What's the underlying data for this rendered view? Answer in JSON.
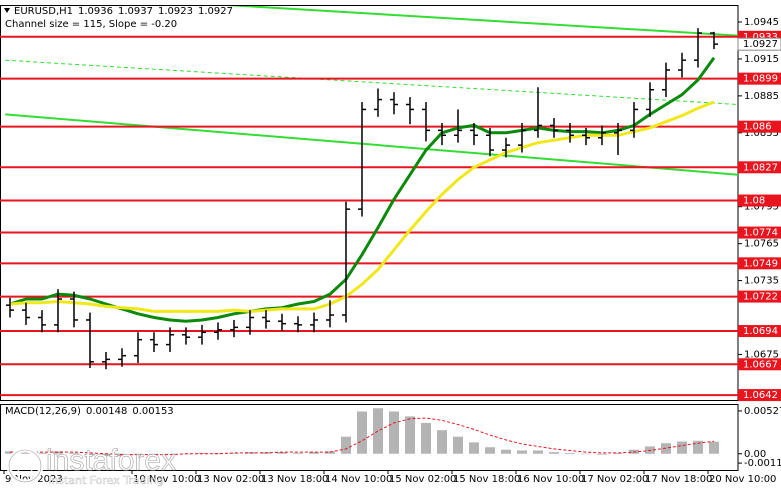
{
  "chart_data": [
    {
      "type": "ohlc",
      "title": "EURUSD,H1",
      "annotation": "Channel size = 115, Slope = -0.20",
      "categories": [
        "9 Nov 2023",
        null,
        null,
        null,
        null,
        null,
        null,
        null,
        "10 Nov 10:00",
        null,
        null,
        null,
        "13 Nov 02:00",
        null,
        null,
        null,
        "13 Nov 18:00",
        null,
        null,
        null,
        "14 Nov 10:00",
        null,
        null,
        null,
        "15 Nov 02:00",
        null,
        null,
        null,
        "15 Nov 18:00",
        null,
        null,
        null,
        "16 Nov 10:00",
        null,
        null,
        null,
        "17 Nov 02:00",
        null,
        null,
        null,
        "17 Nov 18:00",
        null,
        null,
        null,
        "20 Nov 10:00"
      ],
      "open": [
        1.0715,
        1.0711,
        1.0705,
        1.0699,
        1.072,
        1.0703,
        1.0669,
        1.0671,
        1.0674,
        1.0687,
        1.0683,
        1.0691,
        1.0689,
        1.0693,
        1.0695,
        1.0697,
        1.0705,
        1.0702,
        1.07,
        1.0699,
        1.0703,
        1.0707,
        1.0793,
        1.0874,
        1.0882,
        1.0878,
        1.0874,
        1.0857,
        1.0853,
        1.0857,
        1.0853,
        1.0841,
        1.0845,
        1.0857,
        1.0861,
        1.0857,
        1.0853,
        1.0851,
        1.0855,
        1.0857,
        1.0874,
        1.089,
        1.0906,
        1.0914,
        1.0936
      ],
      "high": [
        1.0721,
        1.0717,
        1.0711,
        1.0728,
        1.0726,
        1.0709,
        1.0677,
        1.068,
        1.0693,
        1.0693,
        1.0697,
        1.0697,
        1.0699,
        1.0701,
        1.0703,
        1.0711,
        1.0711,
        1.0708,
        1.0706,
        1.0709,
        1.0719,
        1.0799,
        1.088,
        1.0891,
        1.0888,
        1.0884,
        1.088,
        1.0863,
        1.0874,
        1.0863,
        1.0859,
        1.0851,
        1.0863,
        1.0892,
        1.0867,
        1.0863,
        1.0859,
        1.0861,
        1.0863,
        1.088,
        1.0896,
        1.0912,
        1.092,
        1.094,
        1.0937
      ],
      "low": [
        1.0705,
        1.0699,
        1.0693,
        1.0693,
        1.0697,
        1.0664,
        1.0663,
        1.0665,
        1.0668,
        1.0677,
        1.0677,
        1.0683,
        1.0683,
        1.0687,
        1.0689,
        1.0691,
        1.0696,
        1.0694,
        1.0693,
        1.0693,
        1.0697,
        1.0701,
        1.0787,
        1.0868,
        1.087,
        1.0862,
        1.0848,
        1.0845,
        1.0847,
        1.0845,
        1.0836,
        1.0835,
        1.0839,
        1.0851,
        1.0851,
        1.0847,
        1.0845,
        1.0845,
        1.0837,
        1.0851,
        1.0868,
        1.0884,
        1.09,
        1.0908,
        1.0923
      ],
      "close": [
        1.0711,
        1.0705,
        1.0699,
        1.072,
        1.0703,
        1.0669,
        1.0671,
        1.0674,
        1.0687,
        1.0683,
        1.0691,
        1.0689,
        1.0693,
        1.0695,
        1.0697,
        1.0705,
        1.0702,
        1.07,
        1.0699,
        1.0703,
        1.0707,
        1.0793,
        1.0874,
        1.0882,
        1.0878,
        1.0874,
        1.0857,
        1.0853,
        1.0857,
        1.0853,
        1.0841,
        1.0845,
        1.0857,
        1.0861,
        1.0857,
        1.0853,
        1.0851,
        1.0855,
        1.0857,
        1.0874,
        1.089,
        1.0906,
        1.0914,
        1.0936,
        1.0927
      ],
      "bar_color": "#000000",
      "ma_lines": [
        {
          "color": "#0a8a0a",
          "values": [
            1.0716,
            1.072,
            1.072,
            1.0724,
            1.0723,
            1.072,
            1.0716,
            1.0712,
            1.0708,
            1.0705,
            1.0703,
            1.0702,
            1.0703,
            1.0705,
            1.0708,
            1.071,
            1.0712,
            1.0713,
            1.0716,
            1.0718,
            1.0724,
            1.0736,
            1.0756,
            1.0778,
            1.0801,
            1.0821,
            1.0841,
            1.0855,
            1.0859,
            1.0861,
            1.0855,
            1.0855,
            1.0857,
            1.0859,
            1.0857,
            1.0856,
            1.0856,
            1.0855,
            1.0857,
            1.0861,
            1.087,
            1.0878,
            1.0886,
            1.0898,
            1.0916
          ]
        },
        {
          "color": "#f0e81a",
          "values": [
            1.0716,
            1.0717,
            1.0717,
            1.0718,
            1.0717,
            1.0716,
            1.0714,
            1.0713,
            1.0712,
            1.071,
            1.071,
            1.071,
            1.071,
            1.071,
            1.0711,
            1.071,
            1.0711,
            1.0712,
            1.0712,
            1.0712,
            1.0716,
            1.0722,
            1.0732,
            1.0744,
            1.076,
            1.0776,
            1.0791,
            1.0805,
            1.0817,
            1.0827,
            1.0833,
            1.0839,
            1.0843,
            1.0847,
            1.0849,
            1.0851,
            1.0853,
            1.0853,
            1.0853,
            1.0856,
            1.0859,
            1.0864,
            1.0869,
            1.0875,
            1.088
          ]
        }
      ],
      "trendlines": [
        {
          "color": "#33dd33",
          "dash": false,
          "x": [
            12,
            45.5
          ],
          "values": [
            1.096,
            1.0934
          ]
        },
        {
          "color": "#33dd33",
          "dash": false,
          "x": [
            -0.3,
            45.5
          ],
          "values": [
            1.087,
            1.0821
          ]
        },
        {
          "color": "#33dd33",
          "dash": true,
          "x": [
            -0.3,
            45.5
          ],
          "values": [
            1.0914,
            1.0878
          ]
        }
      ],
      "levels": {
        "color": "#e8141e",
        "values": [
          1.0933,
          1.0899,
          1.086,
          1.0827,
          1.08,
          1.0774,
          1.0749,
          1.0722,
          1.0694,
          1.0667,
          1.0642
        ]
      },
      "ylim": [
        1.0638,
        1.0958
      ],
      "yticks": [
        1.0945,
        1.0915,
        1.0885,
        1.0855,
        1.0795,
        1.0765,
        1.0735,
        1.0675
      ]
    },
    {
      "type": "macd",
      "title": "MACD(12,26,9)",
      "values": [
        0.0003,
        0.0002,
        0.0001,
        0.0003,
        0.0001,
        -0.0002,
        -0.0003,
        -0.0003,
        -0.0001,
        -0.0001,
        0.0,
        0.0,
        0.0001,
        0.0001,
        0.0001,
        0.0002,
        0.0002,
        0.0002,
        0.0001,
        0.0002,
        0.0003,
        0.0021,
        0.0052,
        0.0056,
        0.0052,
        0.0046,
        0.0038,
        0.0029,
        0.0021,
        0.0014,
        0.0008,
        0.0005,
        0.0004,
        0.0004,
        0.0002,
        0.0001,
        0.0,
        -0.0001,
        0.0001,
        0.0005,
        0.0009,
        0.0013,
        0.0015,
        0.0016,
        0.00148
      ],
      "color": "#b4b4b4",
      "signal": [
        0.0002,
        0.0002,
        0.0002,
        0.0002,
        0.0002,
        0.0001,
        0.0,
        -0.0001,
        -0.0001,
        -0.0001,
        -0.0001,
        0.0,
        0.0,
        0.0,
        0.0001,
        0.0001,
        0.0001,
        0.0002,
        0.0002,
        0.0002,
        0.0002,
        0.0006,
        0.0016,
        0.0028,
        0.0038,
        0.0043,
        0.0044,
        0.0041,
        0.0036,
        0.003,
        0.0023,
        0.0017,
        0.0012,
        0.0009,
        0.0006,
        0.0004,
        0.0002,
        0.0001,
        0.0001,
        0.0002,
        0.0004,
        0.0007,
        0.001,
        0.0013,
        0.00153
      ],
      "signal_color": "#e8141e",
      "ylim": [
        -0.002,
        0.006
      ],
      "yticks": [
        0.00527,
        {
          "value": 0,
          "label": "0.00"
        },
        -0.00115
      ]
    }
  ],
  "watermark": {
    "brand": "instaforex",
    "tagline": "Instant Forex Trading"
  }
}
